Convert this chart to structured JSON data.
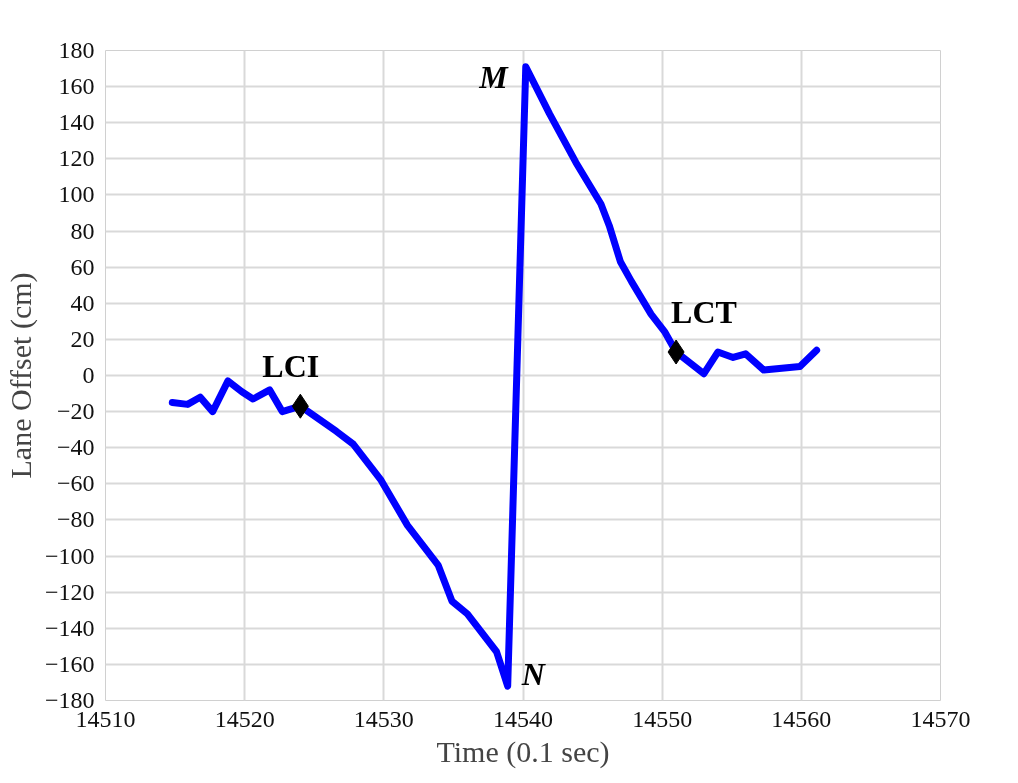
{
  "chart_data": {
    "type": "line",
    "xlabel": "Time (0.1 sec)",
    "ylabel": "Lane Offset (cm)",
    "xlim": [
      14510,
      14570
    ],
    "xticks": [
      14510,
      14520,
      14530,
      14540,
      14550,
      14560,
      14570
    ],
    "ylim": [
      -180,
      180
    ],
    "yticks": [
      -180,
      -160,
      -140,
      -120,
      -100,
      -80,
      -60,
      -40,
      -20,
      0,
      20,
      40,
      60,
      80,
      100,
      120,
      140,
      160,
      180
    ],
    "grid": true,
    "series": [
      {
        "color": "#0000ff",
        "marker": "none",
        "line_style": "solid",
        "x": [
          14514.8,
          14515.9,
          14516.8,
          14517.7,
          14518.8,
          14519.8,
          14520.6,
          14521.8,
          14522.7,
          14524,
          14526.6,
          14527.8,
          14529.8,
          14531.7,
          14533.9,
          14534.9,
          14536,
          14538.1,
          14538.9,
          14540.2,
          14541.9,
          14543.8,
          14545.6,
          14546.2,
          14547,
          14547.8,
          14549.2,
          14550.2,
          14551,
          14553,
          14554,
          14555.1,
          14556,
          14557.3,
          14558.6,
          14559.9,
          14561.1
        ],
        "values": [
          -15,
          -16,
          -12,
          -20,
          -3,
          -9,
          -13,
          -8,
          -20,
          -17,
          -31,
          -38,
          -58,
          -83,
          -105,
          -125,
          -132,
          -153,
          -172,
          171,
          145,
          118,
          95,
          83,
          63,
          52,
          34,
          24,
          13,
          1,
          13,
          10,
          12,
          3,
          4,
          5,
          14
        ]
      },
      {
        "type": "scatter",
        "color": "#000000",
        "marker": "diamond",
        "x": [
          14524,
          14551
        ],
        "values": [
          -17,
          13
        ]
      }
    ],
    "annotations": [
      {
        "text": "LCI",
        "x": 14524,
        "y": -17
      },
      {
        "text": "LCT",
        "x": 14551,
        "y": 13
      },
      {
        "text": "M",
        "x": 14540.2,
        "y": 171
      },
      {
        "text": "N",
        "x": 14538.9,
        "y": -172
      }
    ]
  }
}
